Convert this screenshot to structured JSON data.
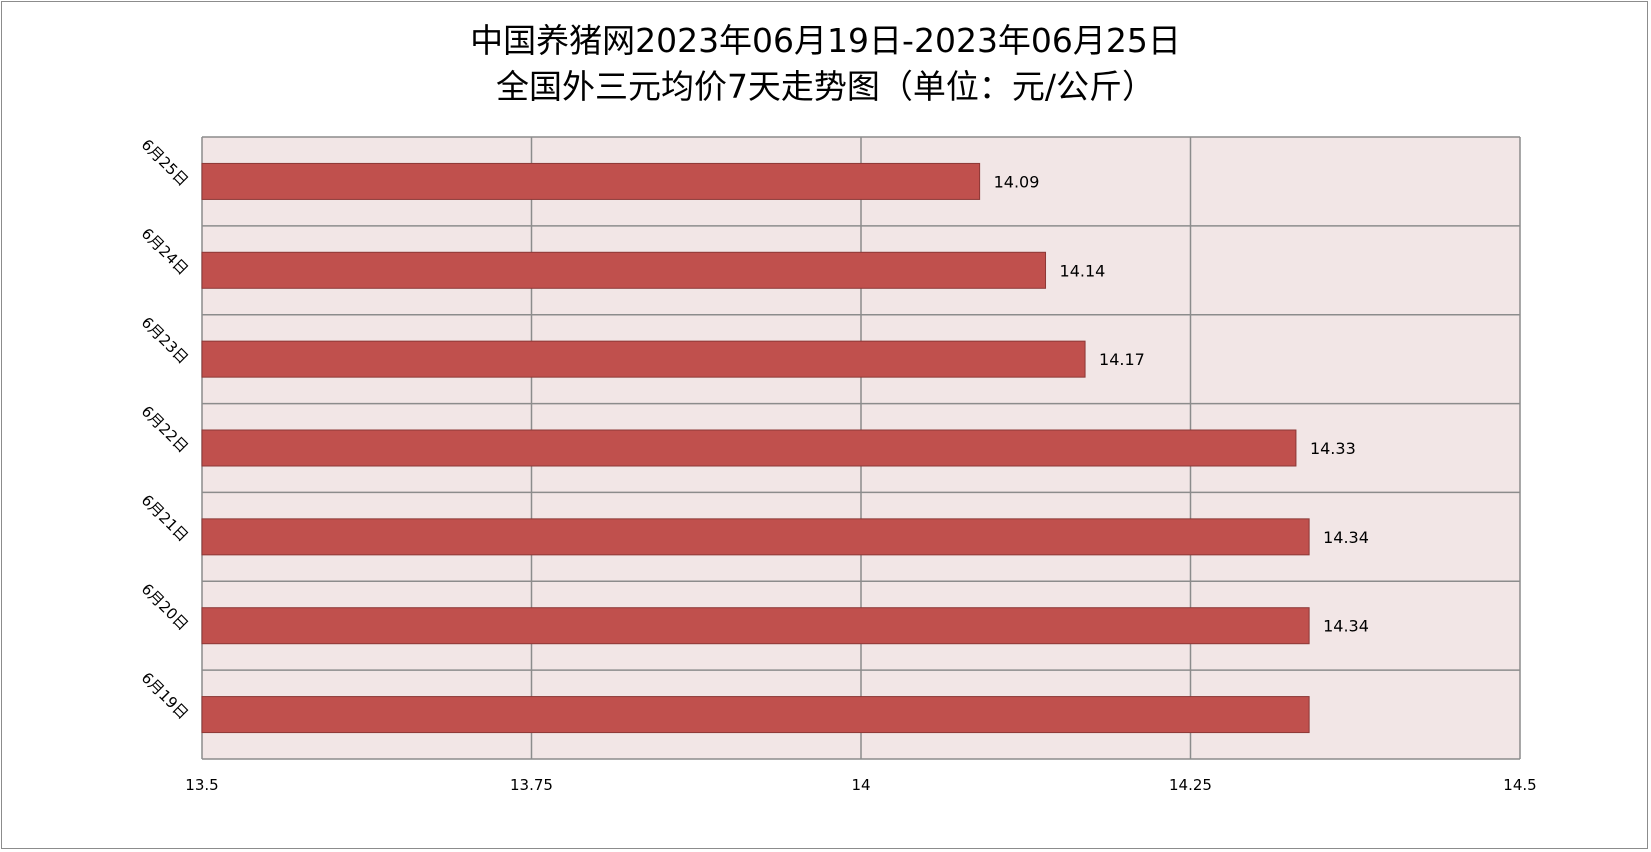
{
  "chart_data": {
    "type": "bar",
    "orientation": "horizontal",
    "title_lines": [
      "中国养猪网2023年06月19日-2023年06月25日",
      "全国外三元均价7天走势图（单位：元/公斤）"
    ],
    "categories": [
      "6月25日",
      "6月24日",
      "6月23日",
      "6月22日",
      "6月21日",
      "6月20日",
      "6月19日"
    ],
    "values": [
      14.09,
      14.14,
      14.17,
      14.33,
      14.34,
      14.34,
      14.34
    ],
    "data_labels": [
      "14.09",
      "14.14",
      "14.17",
      "14.33",
      "14.34",
      "14.34",
      ""
    ],
    "xlim": [
      13.5,
      14.5
    ],
    "xticks": [
      13.5,
      13.75,
      14,
      14.25,
      14.5
    ],
    "xtick_labels": [
      "13.5",
      "13.75",
      "14",
      "14.25",
      "14.5"
    ],
    "grid": true,
    "legend": "none",
    "colors": {
      "bar_fill": "#C0504D",
      "bar_stroke": "#8C3836",
      "plot_background": "#F2E6E6",
      "grid": "#8C8C8C"
    }
  }
}
